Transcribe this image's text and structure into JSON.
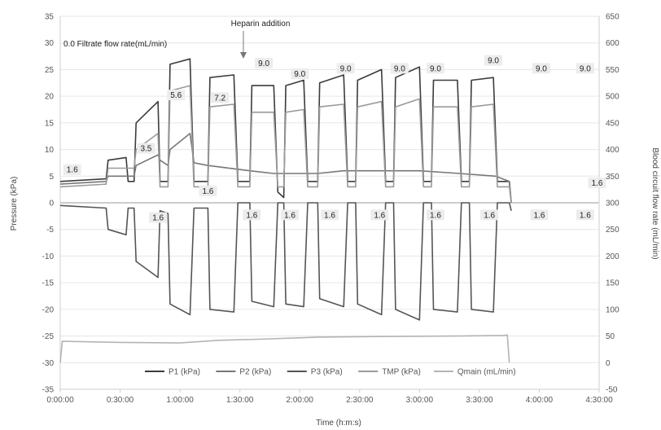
{
  "chart_data": {
    "type": "line",
    "x_axis": {
      "title": "Time (h:m:s)",
      "ticks": [
        "0:00:00",
        "0:30:00",
        "1:00:00",
        "1:30:00",
        "2:00:00",
        "2:30:00",
        "3:00:00",
        "3:30:00",
        "4:00:00",
        "4:30:00"
      ],
      "range_minutes": [
        0,
        270
      ]
    },
    "y_left": {
      "title": "Pressure (kPa)",
      "range": [
        -35,
        35
      ],
      "ticks": [
        -35,
        -30,
        -25,
        -20,
        -15,
        -10,
        -5,
        0,
        5,
        10,
        15,
        20,
        25,
        30,
        35
      ]
    },
    "y_right": {
      "title": "Blood circuit flow rate (mL/min)",
      "range": [
        -50,
        650
      ],
      "ticks": [
        -50,
        0,
        50,
        100,
        150,
        200,
        250,
        300,
        350,
        400,
        450,
        500,
        550,
        600,
        650
      ]
    },
    "grid": "horizontal",
    "legend_position": "bottom",
    "annotations": {
      "heparin": "Heparin addition",
      "filtrate_header": "0.0 Filtrate flow rate(mL/min)",
      "flow_labels": [
        {
          "text": "1.6",
          "t": 6,
          "v": 6
        },
        {
          "text": "3.5",
          "t": 43,
          "v": 10
        },
        {
          "text": "5.6",
          "t": 58,
          "v": 20
        },
        {
          "text": "1.6",
          "t": 49,
          "v": -3
        },
        {
          "text": "1.6",
          "t": 74,
          "v": 2
        },
        {
          "text": "7.2",
          "t": 80,
          "v": 19.5
        },
        {
          "text": "1.6",
          "t": 96,
          "v": -2.5
        },
        {
          "text": "9.0",
          "t": 102,
          "v": 26
        },
        {
          "text": "9.0",
          "t": 120,
          "v": 24
        },
        {
          "text": "1.6",
          "t": 115,
          "v": -2.5
        },
        {
          "text": "9.0",
          "t": 143,
          "v": 25
        },
        {
          "text": "1.6",
          "t": 135,
          "v": -2.5
        },
        {
          "text": "9.0",
          "t": 170,
          "v": 25
        },
        {
          "text": "1.6",
          "t": 160,
          "v": -2.5
        },
        {
          "text": "9.0",
          "t": 188,
          "v": 25
        },
        {
          "text": "1.6",
          "t": 188,
          "v": -2.5
        },
        {
          "text": "9.0",
          "t": 217,
          "v": 26.5
        },
        {
          "text": "1.6",
          "t": 215,
          "v": -2.5
        },
        {
          "text": "9.0",
          "t": 241,
          "v": 25
        },
        {
          "text": "1.6",
          "t": 240,
          "v": -2.5
        },
        {
          "text": "9.0",
          "t": 263,
          "v": 25
        },
        {
          "text": "1.6",
          "t": 263,
          "v": -2.5
        },
        {
          "text": "1.6",
          "t": 269,
          "v": 3.5
        }
      ]
    },
    "series": [
      {
        "name": "P1 (kPa)",
        "axis": "left",
        "color": "#3c3c3c",
        "points": [
          [
            0,
            4
          ],
          [
            23,
            4.5
          ],
          [
            24,
            8
          ],
          [
            33,
            8.5
          ],
          [
            34,
            4
          ],
          [
            37,
            4
          ],
          [
            38,
            15
          ],
          [
            49,
            19
          ],
          [
            50,
            4
          ],
          [
            54,
            4
          ],
          [
            55,
            26
          ],
          [
            65,
            27
          ],
          [
            67,
            4
          ],
          [
            74,
            4
          ],
          [
            75,
            23.5
          ],
          [
            87,
            24
          ],
          [
            89,
            4
          ],
          [
            95,
            4
          ],
          [
            96,
            22
          ],
          [
            107,
            22
          ],
          [
            109,
            2
          ],
          [
            112,
            1
          ],
          [
            113,
            22
          ],
          [
            122,
            23
          ],
          [
            124,
            4
          ],
          [
            129,
            4
          ],
          [
            130,
            22.5
          ],
          [
            142,
            24
          ],
          [
            144,
            4
          ],
          [
            148,
            4
          ],
          [
            149,
            23
          ],
          [
            161,
            25
          ],
          [
            163,
            4
          ],
          [
            167,
            4
          ],
          [
            168,
            23.5
          ],
          [
            180,
            25.5
          ],
          [
            182,
            4
          ],
          [
            186,
            4
          ],
          [
            187,
            23
          ],
          [
            199,
            23
          ],
          [
            201,
            4
          ],
          [
            205,
            4
          ],
          [
            206,
            23
          ],
          [
            217,
            23.5
          ],
          [
            219,
            4
          ],
          [
            225,
            4
          ],
          [
            226,
            0
          ]
        ]
      },
      {
        "name": "P2 (kPa)",
        "axis": "left",
        "color": "#777777",
        "points": [
          [
            0,
            3.5
          ],
          [
            23,
            4
          ],
          [
            24,
            5
          ],
          [
            37,
            5
          ],
          [
            38,
            7
          ],
          [
            49,
            9
          ],
          [
            50,
            8
          ],
          [
            54,
            7
          ],
          [
            55,
            10
          ],
          [
            65,
            13
          ],
          [
            67,
            7.5
          ],
          [
            74,
            7
          ],
          [
            95,
            6
          ],
          [
            107,
            5.5
          ],
          [
            129,
            5.5
          ],
          [
            142,
            6
          ],
          [
            160,
            6
          ],
          [
            180,
            6
          ],
          [
            200,
            5.5
          ],
          [
            218,
            5
          ],
          [
            225,
            4
          ],
          [
            226,
            0
          ]
        ]
      },
      {
        "name": "P3 (kPa)",
        "axis": "left",
        "color": "#555555",
        "points": [
          [
            0,
            -0.5
          ],
          [
            23,
            -1
          ],
          [
            24,
            -5
          ],
          [
            33,
            -6
          ],
          [
            34,
            -1
          ],
          [
            37,
            -1
          ],
          [
            38,
            -11
          ],
          [
            49,
            -14
          ],
          [
            50,
            -1.5
          ],
          [
            54,
            -2
          ],
          [
            55,
            -19
          ],
          [
            65,
            -21
          ],
          [
            67,
            -1
          ],
          [
            74,
            -1
          ],
          [
            75,
            -20
          ],
          [
            87,
            -20.5
          ],
          [
            89,
            0
          ],
          [
            95,
            0
          ],
          [
            96,
            -18.5
          ],
          [
            107,
            -19.5
          ],
          [
            109,
            0
          ],
          [
            112,
            0
          ],
          [
            113,
            -19
          ],
          [
            122,
            -19.5
          ],
          [
            124,
            0
          ],
          [
            129,
            0
          ],
          [
            130,
            -18
          ],
          [
            142,
            -19.5
          ],
          [
            144,
            0
          ],
          [
            148,
            0
          ],
          [
            149,
            -19
          ],
          [
            161,
            -21
          ],
          [
            163,
            0
          ],
          [
            167,
            0
          ],
          [
            168,
            -20
          ],
          [
            180,
            -22
          ],
          [
            182,
            0
          ],
          [
            186,
            0
          ],
          [
            187,
            -20
          ],
          [
            199,
            -20.5
          ],
          [
            201,
            0
          ],
          [
            205,
            0
          ],
          [
            206,
            -20
          ],
          [
            217,
            -20.5
          ],
          [
            219,
            0
          ],
          [
            225,
            0
          ],
          [
            226,
            -1.5
          ]
        ]
      },
      {
        "name": "TMP (kPa)",
        "axis": "left",
        "color": "#9a9a9a",
        "points": [
          [
            0,
            3
          ],
          [
            23,
            3.5
          ],
          [
            24,
            6.5
          ],
          [
            37,
            6.5
          ],
          [
            38,
            10
          ],
          [
            49,
            13
          ],
          [
            50,
            3
          ],
          [
            54,
            3
          ],
          [
            55,
            21
          ],
          [
            65,
            22
          ],
          [
            67,
            3
          ],
          [
            74,
            3
          ],
          [
            75,
            18
          ],
          [
            87,
            18.5
          ],
          [
            89,
            3
          ],
          [
            95,
            3
          ],
          [
            96,
            17
          ],
          [
            107,
            17
          ],
          [
            109,
            3
          ],
          [
            112,
            3
          ],
          [
            113,
            17
          ],
          [
            122,
            17.5
          ],
          [
            124,
            3
          ],
          [
            129,
            3
          ],
          [
            130,
            18
          ],
          [
            142,
            18.5
          ],
          [
            144,
            3
          ],
          [
            148,
            3
          ],
          [
            149,
            18
          ],
          [
            161,
            19
          ],
          [
            163,
            3
          ],
          [
            167,
            3
          ],
          [
            168,
            18
          ],
          [
            180,
            19.5
          ],
          [
            182,
            3
          ],
          [
            186,
            3
          ],
          [
            187,
            18
          ],
          [
            199,
            18
          ],
          [
            201,
            3
          ],
          [
            205,
            3
          ],
          [
            206,
            18
          ],
          [
            217,
            18.5
          ],
          [
            219,
            3
          ],
          [
            225,
            3
          ],
          [
            226,
            0
          ]
        ]
      },
      {
        "name": "Qmain (mL/min)",
        "axis": "right",
        "color": "#b4b4b4",
        "points": [
          [
            0,
            0
          ],
          [
            1,
            40
          ],
          [
            30,
            38
          ],
          [
            60,
            37
          ],
          [
            80,
            42
          ],
          [
            100,
            44
          ],
          [
            130,
            48
          ],
          [
            160,
            49
          ],
          [
            200,
            50
          ],
          [
            222,
            51
          ],
          [
            224,
            52
          ],
          [
            225,
            0
          ]
        ]
      }
    ]
  }
}
